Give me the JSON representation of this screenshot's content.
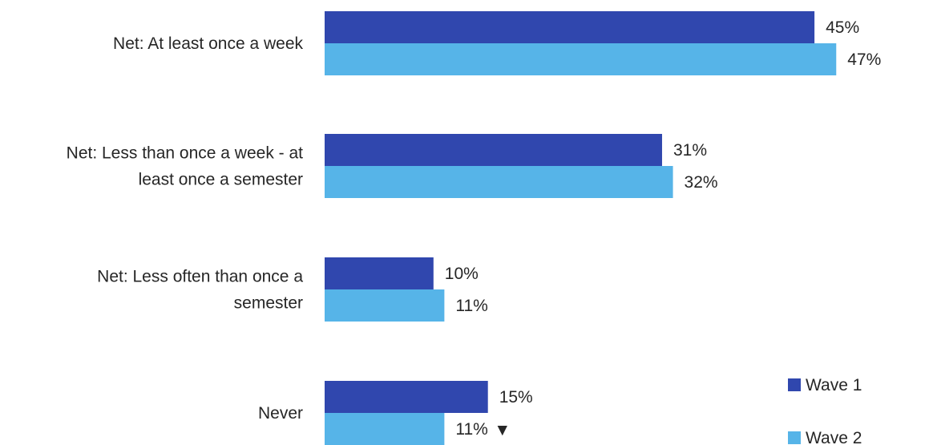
{
  "chart_data": {
    "type": "bar",
    "orientation": "horizontal",
    "categories": [
      [
        "Net: At least once a week"
      ],
      [
        "Net: Less than once a week - at",
        "least once a semester"
      ],
      [
        "Net: Less often than once a",
        "semester"
      ],
      [
        "Never"
      ]
    ],
    "series": [
      {
        "name": "Wave 1",
        "color": "#3047AE",
        "values": [
          45,
          31,
          10,
          15
        ],
        "labels": [
          "45%",
          "31%",
          "10%",
          "15%"
        ]
      },
      {
        "name": "Wave 2",
        "color": "#56B4E8",
        "values": [
          47,
          32,
          11,
          11
        ],
        "labels": [
          "47%",
          "32%",
          "11%",
          "11%"
        ],
        "markers": [
          "",
          "",
          "",
          "▼"
        ]
      }
    ],
    "xlim": [
      0,
      50
    ],
    "grid": false,
    "legend": "bottom-right",
    "title": "",
    "xlabel": "",
    "ylabel": ""
  }
}
